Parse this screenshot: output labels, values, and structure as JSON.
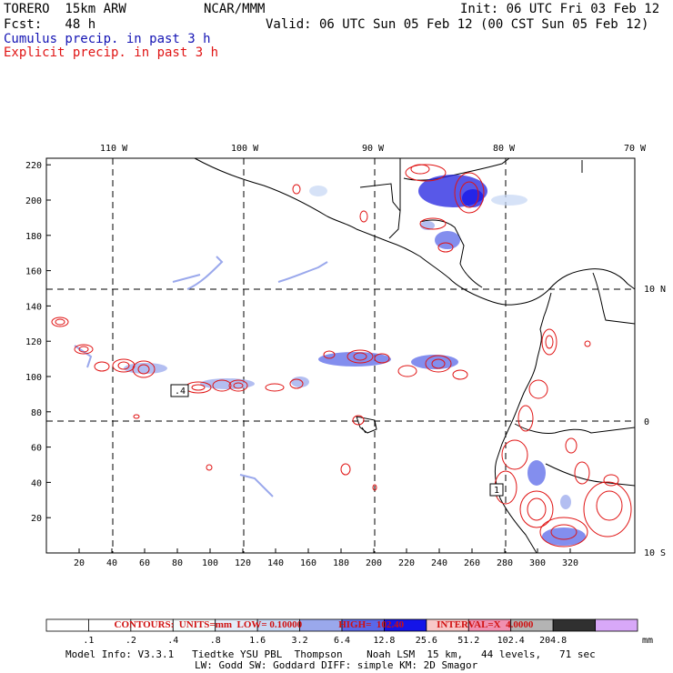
{
  "header": {
    "model": "TORERO  15km ARW",
    "org": "NCAR/MMM",
    "init": "Init: 06 UTC Fri 03 Feb 12",
    "fcst": "Fcst:   48 h",
    "valid": "Valid: 06 UTC Sun 05 Feb 12 (00 CST Sun 05 Feb 12)",
    "cumulus": "Cumulus precip. in past 3 h",
    "explicit": "Explicit precip. in past 3 h"
  },
  "map": {
    "lon_labels": [
      "110 W",
      "100 W",
      "90 W",
      "80 W",
      "70 W"
    ],
    "lat_labels": [
      "10 N",
      "0",
      "10 S"
    ],
    "x_ticks": [
      "20",
      "40",
      "60",
      "80",
      "100",
      "120",
      "140",
      "160",
      "180",
      "200",
      "220",
      "240",
      "260",
      "280",
      "300",
      "320"
    ],
    "y_ticks": [
      "20",
      "40",
      "60",
      "80",
      "100",
      "120",
      "140",
      "160",
      "180",
      "200",
      "220"
    ],
    "boxed_labels": [
      ".4",
      "1"
    ]
  },
  "contour_info": {
    "contours": "CONTOURS:  UNITS=mm  LOW= 0.10000",
    "high": "HIGH=  102.40",
    "interval": "INTERVAL=X  4.0000"
  },
  "colorbar": {
    "levels": [
      ".1",
      ".2",
      ".4",
      ".8",
      "1.6",
      "3.2",
      "6.4",
      "12.8",
      "25.6",
      "51.2",
      "102.4",
      "204.8"
    ],
    "unit": "mm",
    "colors": [
      "#ffffff",
      "#ffffff",
      "#ffffff",
      "#f4fcfc",
      "#e4ecf8",
      "#c8d8f4",
      "#9aa8ec",
      "#5a68e8",
      "#1414e8",
      "#f8c8c8",
      "#f090b0",
      "#b4b4b4",
      "#303030",
      "#d8a8f8"
    ]
  },
  "footer": {
    "line1": "Model Info: V3.3.1   Tiedtke YSU PBL  Thompson    Noah LSM  15 km,   44 levels,   71 sec",
    "line2": "LW: Godd SW: Goddard DIFF: simple KM: 2D Smagor"
  },
  "colors": {
    "cumulus": "#1414b4",
    "explicit": "#e01414"
  }
}
